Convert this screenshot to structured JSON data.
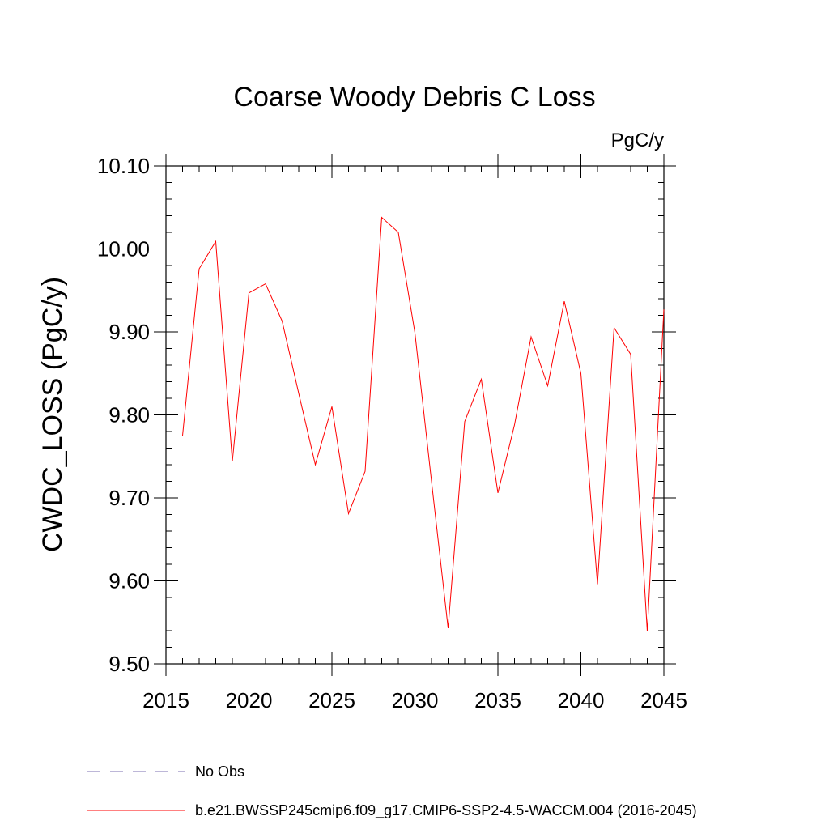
{
  "chart_data": {
    "type": "line",
    "title": "Coarse Woody Debris C Loss",
    "units_label": "PgC/y",
    "ylabel": "CWDC_LOSS  (PgC/y)",
    "xlabel": "",
    "xlim": [
      2015,
      2045
    ],
    "ylim": [
      9.5,
      10.1
    ],
    "x_ticks": [
      2015,
      2020,
      2025,
      2030,
      2035,
      2040,
      2045
    ],
    "x_tick_labels": [
      "2015",
      "2020",
      "2025",
      "2030",
      "2035",
      "2040",
      "2045"
    ],
    "y_ticks": [
      9.5,
      9.6,
      9.7,
      9.8,
      9.9,
      10.0,
      10.1
    ],
    "y_tick_labels": [
      "9.50",
      "9.60",
      "9.70",
      "9.80",
      "9.90",
      "10.00",
      "10.10"
    ],
    "grid": false,
    "legend_position": "bottom",
    "series": [
      {
        "name": "b.e21.BWSSP245cmip6.f09_g17.CMIP6-SSP2-4.5-WACCM.004 (2016-2045)",
        "color": "#ff0000",
        "style": "solid",
        "x": [
          2016,
          2017,
          2018,
          2019,
          2020,
          2021,
          2022,
          2023,
          2024,
          2025,
          2026,
          2027,
          2028,
          2029,
          2030,
          2031,
          2032,
          2033,
          2034,
          2035,
          2036,
          2037,
          2038,
          2039,
          2040,
          2041,
          2042,
          2043,
          2044,
          2045
        ],
        "y": [
          9.775,
          9.976,
          10.009,
          9.744,
          9.947,
          9.958,
          9.913,
          9.826,
          9.74,
          9.81,
          9.681,
          9.732,
          10.038,
          10.02,
          9.899,
          9.72,
          9.543,
          9.792,
          9.843,
          9.706,
          9.788,
          9.894,
          9.835,
          9.937,
          9.85,
          9.596,
          9.905,
          9.873,
          9.539,
          9.927
        ]
      }
    ],
    "legend": [
      {
        "label": "No Obs",
        "color": "#7b6fb0",
        "style": "dashed"
      },
      {
        "label": "b.e21.BWSSP245cmip6.f09_g17.CMIP6-SSP2-4.5-WACCM.004 (2016-2045)",
        "color": "#ff0000",
        "style": "solid"
      }
    ]
  }
}
